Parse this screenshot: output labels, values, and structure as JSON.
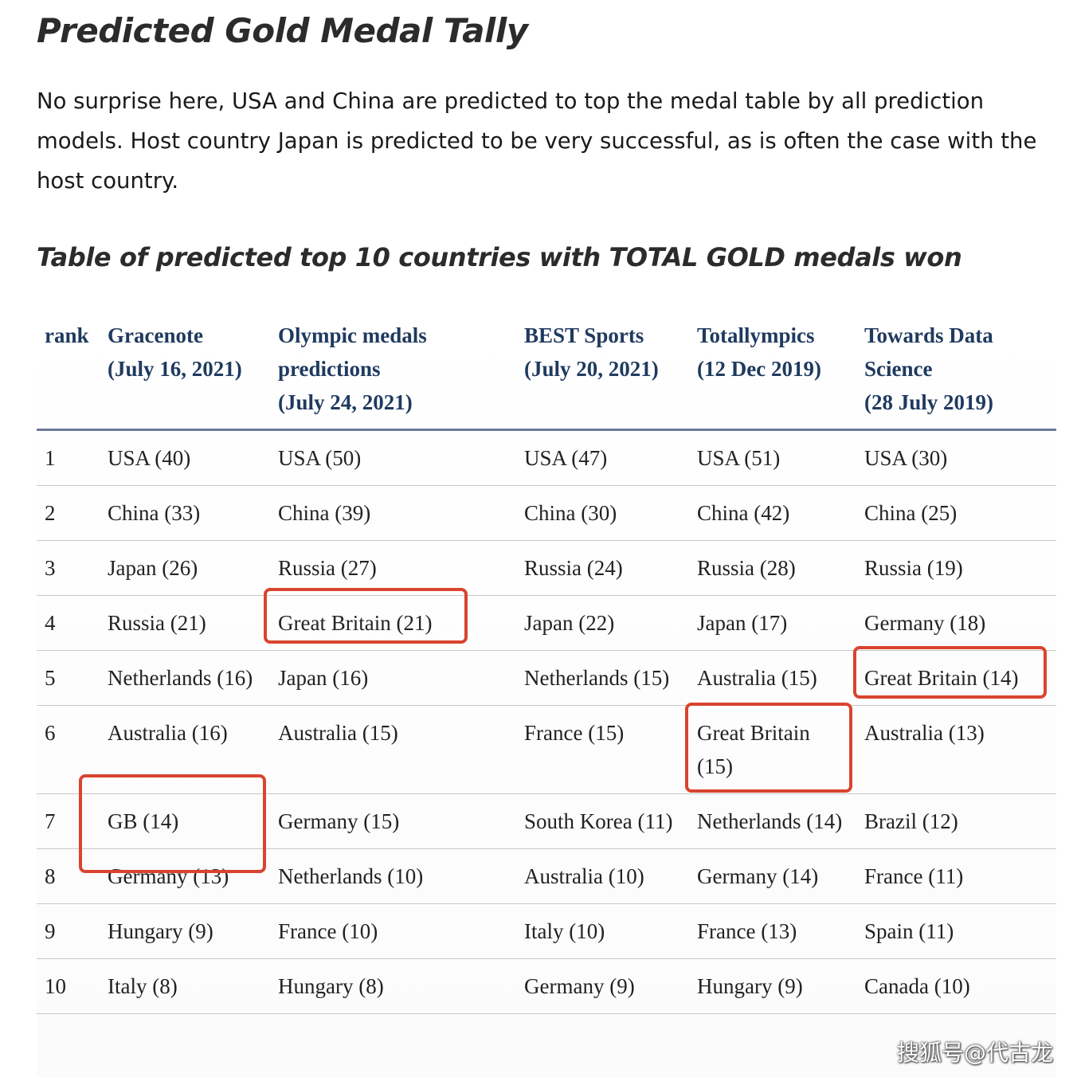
{
  "title": "Predicted Gold Medal Tally",
  "intro": "No surprise here, USA and China are predicted to top the medal table by all prediction models. Host country Japan is predicted to be very successful, as is often the case with the host country.",
  "table_heading": "Table of predicted top 10 countries with TOTAL GOLD medals won",
  "table": {
    "headers": [
      [
        "rank"
      ],
      [
        "Gracenote",
        "(July 16, 2021)"
      ],
      [
        "Olympic medals",
        "predictions",
        "(July 24, 2021)"
      ],
      [
        "BEST Sports",
        "(July 20, 2021)"
      ],
      [
        "Totallympics",
        "(12 Dec 2019)"
      ],
      [
        "Towards Data",
        "Science",
        "(28 July 2019)"
      ]
    ],
    "rows": [
      [
        "1",
        "USA (40)",
        "USA (50)",
        "USA (47)",
        "USA (51)",
        "USA (30)"
      ],
      [
        "2",
        "China (33)",
        "China (39)",
        "China (30)",
        "China (42)",
        "China (25)"
      ],
      [
        "3",
        "Japan (26)",
        "Russia (27)",
        "Russia (24)",
        "Russia (28)",
        "Russia (19)"
      ],
      [
        "4",
        "Russia (21)",
        "Great Britain (21)",
        "Japan (22)",
        "Japan (17)",
        "Germany (18)"
      ],
      [
        "5",
        "Netherlands (16)",
        "Japan (16)",
        "Netherlands (15)",
        "Australia (15)",
        "Great Britain (14)"
      ],
      [
        "6",
        "Australia (16)",
        "Australia (15)",
        "France (15)",
        "Great Britain (15)",
        "Australia (13)"
      ],
      [
        "7",
        "GB (14)",
        "Germany (15)",
        "South Korea (11)",
        "Netherlands (14)",
        "Brazil (12)"
      ],
      [
        "8",
        "Germany (13)",
        "Netherlands (10)",
        "Australia (10)",
        "Germany (14)",
        "France (11)"
      ],
      [
        "9",
        "Hungary (9)",
        "France (10)",
        "Italy (10)",
        "France (13)",
        "Spain (11)"
      ],
      [
        "10",
        "Italy (8)",
        "Hungary (8)",
        "Germany (9)",
        "Hungary (9)",
        "Canada (10)"
      ]
    ],
    "highlight_color": "#d9442f",
    "header_color": "#1f3a5f"
  },
  "watermark": "搜狐号@代古龙"
}
